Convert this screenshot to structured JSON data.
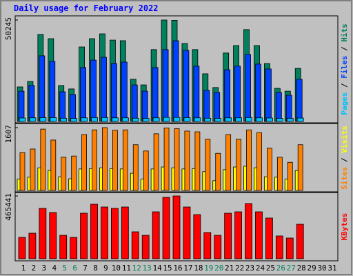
{
  "title": "Daily usage for February 2022",
  "chart_data": [
    {
      "type": "bar",
      "categories": [
        "1",
        "2",
        "3",
        "4",
        "5",
        "6",
        "7",
        "8",
        "9",
        "10",
        "11",
        "12",
        "13",
        "14",
        "15",
        "16",
        "17",
        "18",
        "19",
        "20",
        "21",
        "22",
        "23",
        "24",
        "25",
        "26",
        "27",
        "28",
        "29",
        "30",
        "31"
      ],
      "category_colors": [
        "#000000",
        "#000000",
        "#000000",
        "#000000",
        "#00805c",
        "#00805c",
        "#000000",
        "#000000",
        "#000000",
        "#000000",
        "#000000",
        "#00805c",
        "#00805c",
        "#000000",
        "#000000",
        "#000000",
        "#000000",
        "#000000",
        "#00805c",
        "#00805c",
        "#000000",
        "#000000",
        "#000000",
        "#000000",
        "#000000",
        "#00805c",
        "#00805c",
        "#000000",
        "#000000",
        "#000000",
        "#000000"
      ],
      "legend_separator": " / ",
      "ylim": [
        0,
        50245
      ],
      "yticks": [
        50245
      ],
      "series": [
        {
          "name": "Hits",
          "color": "#00805c",
          "values": [
            17100,
            19800,
            43100,
            41000,
            17800,
            16100,
            36900,
            41000,
            43400,
            40300,
            40000,
            20900,
            18100,
            35600,
            50245,
            50100,
            38600,
            35600,
            23600,
            16800,
            33900,
            37600,
            45500,
            37600,
            28700,
            16400,
            15000,
            26300,
            null,
            null,
            null
          ]
        },
        {
          "name": "Files",
          "color": "#0040ff",
          "values": [
            15000,
            17800,
            32500,
            29800,
            14700,
            13300,
            26700,
            30400,
            31800,
            28700,
            29400,
            18100,
            15000,
            26700,
            35600,
            40000,
            35200,
            27400,
            15400,
            14400,
            25600,
            27400,
            33200,
            28400,
            26000,
            14400,
            13000,
            20900,
            null,
            null,
            null
          ]
        },
        {
          "name": "Pages",
          "color": "#00c0ff",
          "values": [
            1700,
            1800,
            1900,
            1900,
            1600,
            1500,
            1800,
            1900,
            1900,
            1800,
            1800,
            1600,
            1500,
            1800,
            2000,
            2000,
            1900,
            1800,
            1600,
            1500,
            1800,
            1800,
            1900,
            1800,
            1700,
            1500,
            1500,
            1700,
            null,
            null,
            null
          ]
        }
      ]
    },
    {
      "type": "bar",
      "legend_separator": " / ",
      "ylim": [
        0,
        1607
      ],
      "yticks": [
        1607
      ],
      "series": [
        {
          "name": "Visits",
          "color": "#ffff00",
          "values": [
            290,
            340,
            580,
            510,
            350,
            300,
            550,
            560,
            580,
            560,
            550,
            440,
            290,
            550,
            600,
            580,
            550,
            560,
            480,
            250,
            530,
            600,
            620,
            580,
            350,
            340,
            290,
            510,
            null,
            null,
            null
          ]
        },
        {
          "name": "Sites",
          "color": "#ff8000",
          "values": [
            970,
            1060,
            1570,
            1290,
            850,
            880,
            1430,
            1550,
            1607,
            1540,
            1550,
            1170,
            1010,
            1450,
            1600,
            1580,
            1520,
            1500,
            1310,
            950,
            1430,
            1310,
            1550,
            1480,
            1080,
            850,
            720,
            1170,
            null,
            null,
            null
          ]
        }
      ]
    },
    {
      "type": "bar",
      "ylim": [
        0,
        465441
      ],
      "yticks": [
        465441
      ],
      "series": [
        {
          "name": "KBytes",
          "color": "#ff0000",
          "values": [
            158600,
            189300,
            373400,
            342700,
            173900,
            158600,
            337600,
            404100,
            383600,
            373400,
            383600,
            199500,
            173900,
            347800,
            455200,
            465441,
            383600,
            327400,
            194400,
            173900,
            337600,
            347800,
            409200,
            347800,
            301800,
            168800,
            153500,
            255800,
            null,
            null,
            null
          ]
        }
      ]
    }
  ]
}
